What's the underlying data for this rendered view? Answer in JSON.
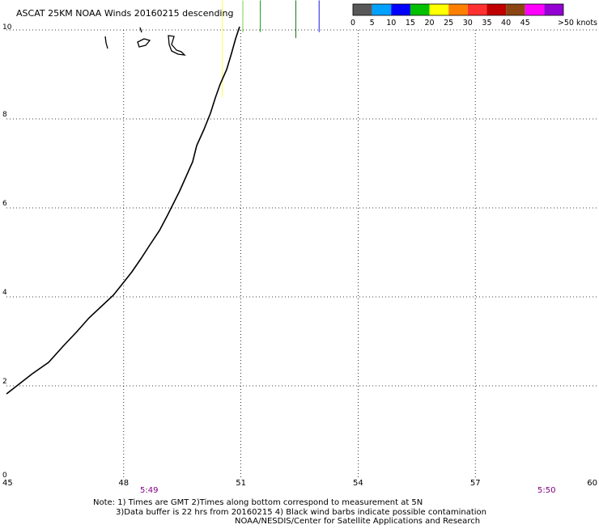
{
  "title": "ASCAT 25KM NOAA Winds 20160215 descending",
  "colorbar": {
    "labels": [
      "0",
      "5",
      "10",
      "15",
      "20",
      "25",
      "30",
      "35",
      "40",
      "45",
      ">50 knots"
    ],
    "colors": [
      "#585858",
      "#00a0ff",
      "#0000ff",
      "#00c000",
      "#ffff00",
      "#ff8000",
      "#ff3030",
      "#c00000",
      "#8b4513",
      "#ff00ff",
      "#9400d3"
    ]
  },
  "axes": {
    "x_ticks": [
      "45",
      "48",
      "51",
      "54",
      "57",
      "60"
    ],
    "y_ticks": [
      "0",
      "2",
      "4",
      "6",
      "8",
      "10"
    ],
    "x_range": [
      45,
      60
    ],
    "y_range": [
      0,
      10
    ],
    "grid": "dotted"
  },
  "pass_times": [
    "5:49",
    "5:50"
  ],
  "notes": [
    "Note: 1) Times are GMT 2)Times along bottom correspond to measurement at 5N",
    "3)Data buffer is 22 hrs from 20160215 4) Black wind barbs indicate possible contamination",
    "NOAA/NESDIS/Center for Satellite Applications and Research"
  ],
  "barb_colors": {
    "light_green": "#66cc33",
    "green": "#009900",
    "dark_green": "#006600",
    "blue": "#0000dd",
    "yellow": "#ffff44",
    "land": "#000000"
  }
}
